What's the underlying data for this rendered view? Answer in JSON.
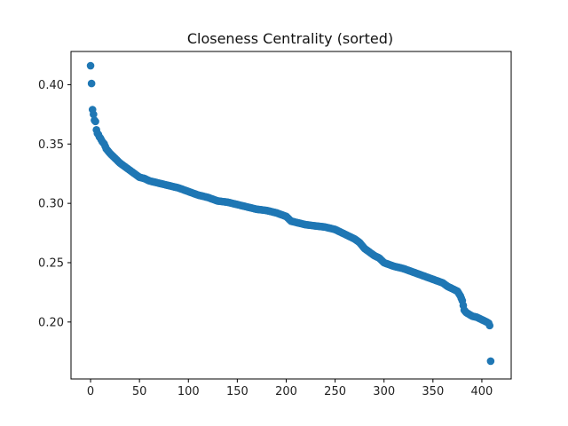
{
  "chart_data": {
    "type": "scatter",
    "title": "Closeness Centrality (sorted)",
    "xlabel": "",
    "ylabel": "",
    "xlim": [
      -20,
      430
    ],
    "ylim": [
      0.152,
      0.428
    ],
    "x_ticks": [
      0,
      50,
      100,
      150,
      200,
      250,
      300,
      350,
      400
    ],
    "y_ticks": [
      0.2,
      0.25,
      0.3,
      0.35,
      0.4
    ],
    "y_tick_labels": [
      "0.20",
      "0.25",
      "0.30",
      "0.35",
      "0.40"
    ],
    "grid": false,
    "legend": "none",
    "marker_color": "#1f77b4",
    "series": [
      {
        "x": [
          0,
          1,
          2,
          3,
          4,
          5,
          6,
          7,
          8,
          9,
          10,
          12,
          14,
          16,
          18,
          20,
          25,
          30,
          35,
          40,
          45,
          50,
          55,
          60,
          70,
          80,
          90,
          100,
          110,
          120,
          130,
          140,
          150,
          160,
          170,
          180,
          190,
          200,
          205,
          210,
          220,
          230,
          240,
          250,
          255,
          260,
          265,
          270,
          275,
          280,
          285,
          290,
          295,
          300,
          310,
          320,
          330,
          340,
          350,
          360,
          365,
          370,
          375,
          378,
          380,
          381,
          382,
          384,
          386,
          388,
          390,
          395,
          400,
          405,
          407,
          408,
          409
        ],
        "y": [
          0.416,
          0.401,
          0.379,
          0.375,
          0.37,
          0.369,
          0.362,
          0.359,
          0.358,
          0.356,
          0.355,
          0.352,
          0.35,
          0.346,
          0.344,
          0.342,
          0.338,
          0.334,
          0.331,
          0.328,
          0.325,
          0.322,
          0.321,
          0.319,
          0.317,
          0.315,
          0.313,
          0.31,
          0.307,
          0.305,
          0.302,
          0.301,
          0.299,
          0.297,
          0.295,
          0.294,
          0.292,
          0.289,
          0.285,
          0.284,
          0.282,
          0.281,
          0.28,
          0.278,
          0.276,
          0.274,
          0.272,
          0.27,
          0.267,
          0.262,
          0.259,
          0.256,
          0.254,
          0.25,
          0.247,
          0.245,
          0.242,
          0.239,
          0.236,
          0.233,
          0.23,
          0.228,
          0.226,
          0.222,
          0.218,
          0.214,
          0.21,
          0.208,
          0.207,
          0.206,
          0.205,
          0.204,
          0.202,
          0.2,
          0.199,
          0.197,
          0.167
        ]
      }
    ]
  }
}
